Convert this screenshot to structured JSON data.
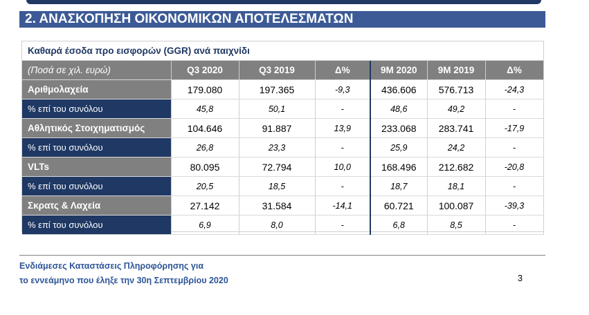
{
  "section": {
    "title": "2. ΑΝΑΣΚΟΠΗΣΗ ΟΙΚΟΝΟΜΙΚΩΝ ΑΠΟΤΕΛΕΣΜΑΤΩΝ"
  },
  "table": {
    "caption": "Καθαρά έσοδα προ εισφορών (GGR) ανά παιχνίδι",
    "header": [
      "(Ποσά σε χιλ. ευρώ)",
      "Q3 2020",
      "Q3 2019",
      "Δ%",
      "9M 2020",
      "9M 2019",
      "Δ%"
    ],
    "rows": [
      {
        "label": "Αριθμολαχεία",
        "cells": [
          "179.080",
          "197.365",
          "-9,3",
          "436.606",
          "576.713",
          "-24,3"
        ]
      },
      {
        "label": "% επί του συνόλου",
        "cells": [
          "45,8",
          "50,1",
          "-",
          "48,6",
          "49,2",
          "-"
        ]
      },
      {
        "label": "Αθλητικός Στοιχηματισμός",
        "cells": [
          "104.646",
          "91.887",
          "13,9",
          "233.068",
          "283.741",
          "-17,9"
        ]
      },
      {
        "label": "% επί του συνόλου",
        "cells": [
          "26,8",
          "23,3",
          "-",
          "25,9",
          "24,2",
          "-"
        ]
      },
      {
        "label": "VLTs",
        "cells": [
          "80.095",
          "72.794",
          "10,0",
          "168.496",
          "212.682",
          "-20,8"
        ]
      },
      {
        "label": "% επί του συνόλου",
        "cells": [
          "20,5",
          "18,5",
          "-",
          "18,7",
          "18,1",
          "-"
        ]
      },
      {
        "label": "Σκρατς & Λαχεία",
        "cells": [
          "27.142",
          "31.584",
          "-14,1",
          "60.721",
          "100.087",
          "-39,3"
        ]
      },
      {
        "label": "% επί του συνόλου",
        "cells": [
          "6,9",
          "8,0",
          "-",
          "6,8",
          "8,5",
          "-"
        ]
      }
    ]
  },
  "footer": {
    "line1": "Ενδιάμεσες Καταστάσεις Πληροφόρησης για",
    "line2": "το εννεάμηνο που έληξε την 30η Σεπτεμβρίου 2020",
    "page_number": "3"
  },
  "colors": {
    "navy": "#1f3864",
    "grey": "#808080",
    "title_blue": "#3c5a95"
  }
}
